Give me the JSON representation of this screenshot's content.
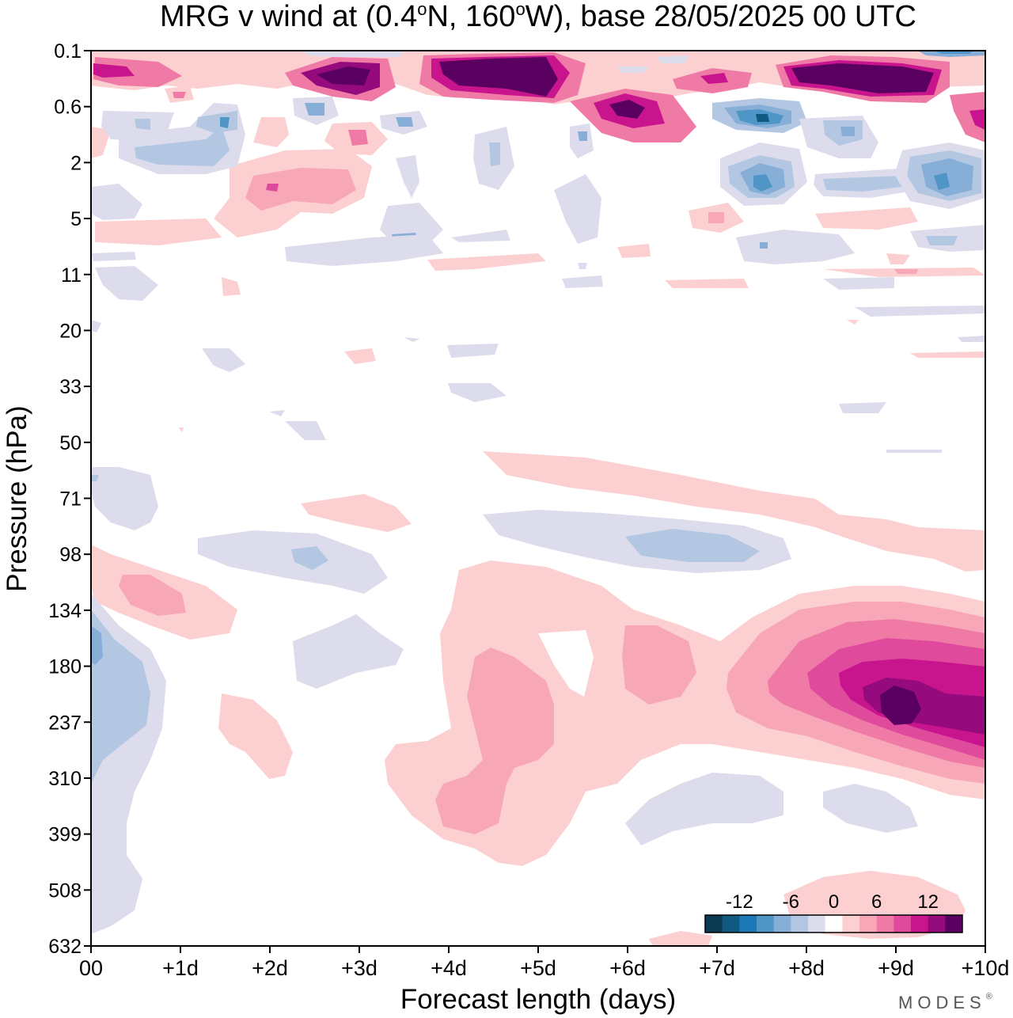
{
  "chart_data": {
    "type": "heatmap",
    "title": "MRG v wind at (0.4°N, 160°W),  base 28/05/2025  00 UTC",
    "title_parts": {
      "prefix": "MRG v wind at (0.4",
      "deg1": "o",
      "mid": "N, 160",
      "deg2": "o",
      "suffix": "W),  base 28/05/2025  00 UTC"
    },
    "xlabel": "Forecast length (days)",
    "ylabel": "Pressure (hPa)",
    "x_ticks": [
      "00",
      "+1d",
      "+2d",
      "+3d",
      "+4d",
      "+5d",
      "+6d",
      "+7d",
      "+8d",
      "+9d",
      "+10d"
    ],
    "y_ticks": [
      "0.1",
      "0.6",
      "2",
      "5",
      "11",
      "20",
      "33",
      "50",
      "71",
      "98",
      "134",
      "180",
      "237",
      "310",
      "399",
      "508",
      "632"
    ],
    "xlim": [
      0,
      10
    ],
    "y_scale": "pressure (log-like, top = 0.1 hPa)",
    "colorbar": {
      "labels": [
        "-12",
        "-6",
        "0",
        "6",
        "12"
      ],
      "levels": [
        -16,
        -14,
        -12,
        -10,
        -8,
        -6,
        -4,
        -2,
        2,
        4,
        6,
        8,
        10,
        12,
        14,
        16
      ],
      "colors": [
        "#0b3a52",
        "#105a82",
        "#1a78b4",
        "#4f95c5",
        "#86aed6",
        "#b3c7e2",
        "#dcdcec",
        "#ffffff",
        "#fcd0d0",
        "#f7a7b7",
        "#f07aa6",
        "#e04a9c",
        "#c8148d",
        "#950a7d",
        "#5a0060"
      ]
    },
    "features": [
      {
        "label": "upper-level strong positive band",
        "x": [
          0,
          10
        ],
        "pressure": [
          0.1,
          1
        ],
        "value_max": 16
      },
      {
        "label": "negative cores",
        "x": [
          7.5,
          9.5
        ],
        "pressure": [
          0.6,
          3
        ],
        "value_min": -12
      },
      {
        "label": "positive maximum near tropopause",
        "x": [
          9,
          9
        ],
        "pressure": [
          237,
          237
        ],
        "value_max": 16
      },
      {
        "label": "negative region near surface start",
        "x": [
          0,
          0.5
        ],
        "pressure": [
          134,
          310
        ],
        "value_min": -8
      }
    ]
  },
  "brand": "MODES",
  "brand_mark": "®"
}
